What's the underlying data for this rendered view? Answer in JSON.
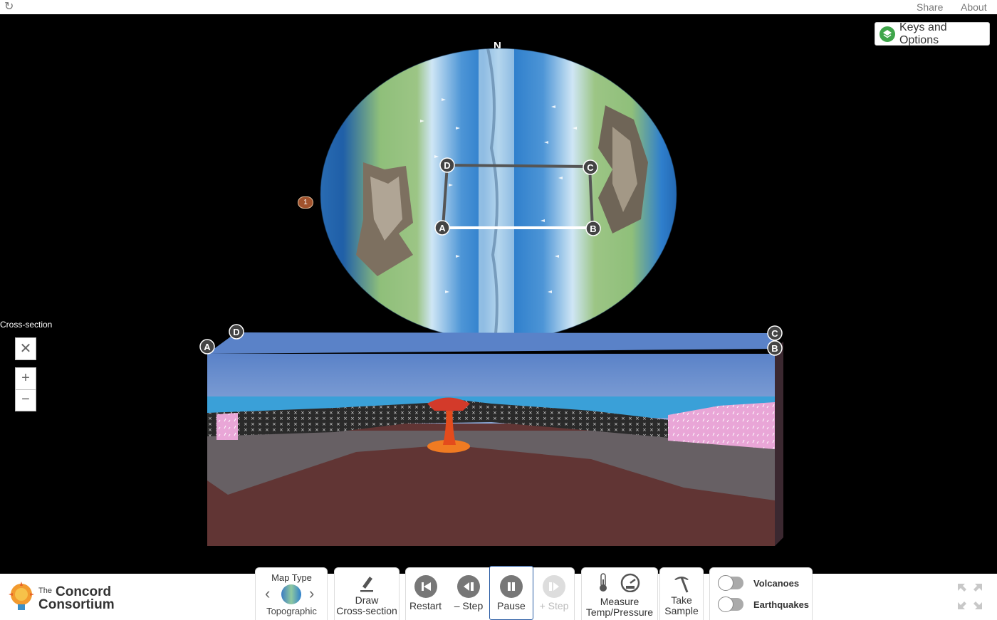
{
  "topbar": {
    "share": "Share",
    "about": "About",
    "reload_icon": "reload-icon"
  },
  "keys_options": {
    "label": "Keys and Options",
    "icon": "layers-icon",
    "accent": "#3fa54a"
  },
  "globe": {
    "north_label": "N",
    "marker_label": "1",
    "points": [
      "A",
      "B",
      "C",
      "D"
    ]
  },
  "cross_section": {
    "title": "Cross-section",
    "close": "✕",
    "zoom_in": "+",
    "zoom_out": "−",
    "corner_a": "A",
    "corner_b": "B",
    "corner_c": "C",
    "corner_d": "D"
  },
  "toolbar": {
    "map_type": {
      "title": "Map Type",
      "value": "Topographic",
      "prev": "‹",
      "next": "›"
    },
    "draw": {
      "line1": "Draw",
      "line2": "Cross-section"
    },
    "restart": "Restart",
    "step_back": "– Step",
    "pause": "Pause",
    "step_forward": "+ Step",
    "measure": {
      "line1": "Measure",
      "line2": "Temp/Pressure"
    },
    "sample": {
      "line1": "Take",
      "line2": "Sample"
    },
    "volcanoes": "Volcanoes",
    "earthquakes": "Earthquakes"
  },
  "logo": {
    "line1": "The",
    "line2": "Concord",
    "line3": "Consortium"
  }
}
